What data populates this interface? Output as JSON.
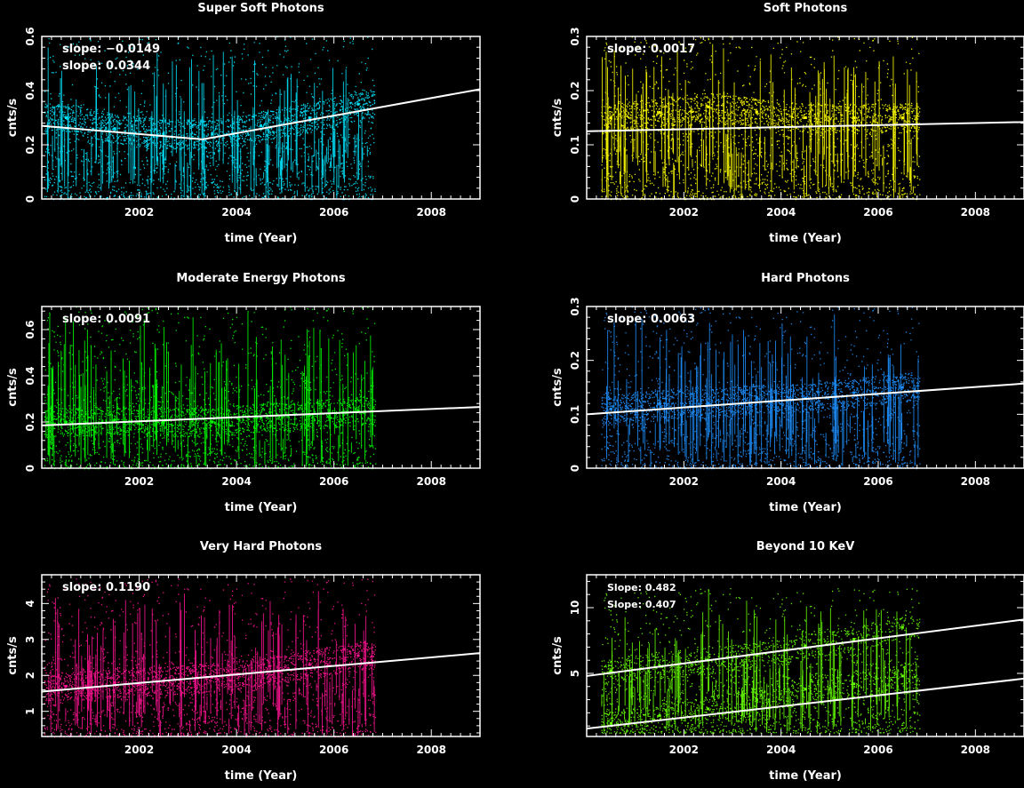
{
  "chart_data": [
    {
      "type": "scatter",
      "title": "Super Soft Photons",
      "xlabel": "time (Year)",
      "ylabel": "cnts/s",
      "xlim": [
        2000.0,
        2009.0
      ],
      "ylim": [
        0,
        0.6
      ],
      "xticks": [
        2002,
        2004,
        2006,
        2008
      ],
      "yticks": [
        0,
        0.2,
        0.4,
        0.6
      ],
      "point_color": "#00e5ff",
      "data_span": [
        2000.05,
        2006.85
      ],
      "spread": [
        0.0,
        0.6
      ],
      "slopes": [
        "slope: −0.0149",
        "slope: 0.0344"
      ],
      "fits": [
        {
          "x": [
            2000.0,
            2003.3
          ],
          "y": [
            0.27,
            0.22
          ]
        },
        {
          "x": [
            2003.3,
            2009.0
          ],
          "y": [
            0.22,
            0.405
          ]
        }
      ],
      "series": [
        {
          "name": "",
          "x": [
            2000.5,
            2001.5,
            2002.5,
            2003.5,
            2004.5,
            2005.5,
            2006.5
          ],
          "y": [
            0.3,
            0.26,
            0.24,
            0.24,
            0.27,
            0.3,
            0.35
          ]
        }
      ]
    },
    {
      "type": "scatter",
      "title": "Soft Photons",
      "xlabel": "time (Year)",
      "ylabel": "cnts/s",
      "xlim": [
        2000.0,
        2009.0
      ],
      "ylim": [
        0,
        0.3
      ],
      "xticks": [
        2002,
        2004,
        2006,
        2008
      ],
      "yticks": [
        0,
        0.1,
        0.2,
        0.3
      ],
      "point_color": "#ffff00",
      "data_span": [
        2000.3,
        2006.85
      ],
      "spread": [
        0.0,
        0.3
      ],
      "slopes": [
        "slope: 0.0017"
      ],
      "fits": [
        {
          "x": [
            2000.0,
            2009.0
          ],
          "y": [
            0.125,
            0.142
          ]
        }
      ],
      "series": [
        {
          "name": "",
          "x": [
            2000.5,
            2001.5,
            2002.5,
            2003.5,
            2004.5,
            2005.5,
            2006.5
          ],
          "y": [
            0.15,
            0.16,
            0.17,
            0.16,
            0.15,
            0.15,
            0.15
          ]
        }
      ]
    },
    {
      "type": "scatter",
      "title": "Moderate Energy Photons",
      "xlabel": "time (Year)",
      "ylabel": "cnts/s",
      "xlim": [
        2000.0,
        2009.0
      ],
      "ylim": [
        0,
        0.7
      ],
      "xticks": [
        2002,
        2004,
        2006,
        2008
      ],
      "yticks": [
        0,
        0.2,
        0.4,
        0.6
      ],
      "point_color": "#00ff00",
      "data_span": [
        2000.05,
        2006.85
      ],
      "spread": [
        0.0,
        0.7
      ],
      "slopes": [
        "slope: 0.0091"
      ],
      "fits": [
        {
          "x": [
            2000.0,
            2009.0
          ],
          "y": [
            0.185,
            0.265
          ]
        }
      ],
      "series": [
        {
          "name": "",
          "x": [
            2000.5,
            2001.5,
            2002.5,
            2003.5,
            2004.5,
            2005.5,
            2006.5
          ],
          "y": [
            0.2,
            0.21,
            0.2,
            0.2,
            0.22,
            0.23,
            0.25
          ]
        }
      ]
    },
    {
      "type": "scatter",
      "title": "Hard Photons",
      "xlabel": "time (Year)",
      "ylabel": "cnts/s",
      "xlim": [
        2000.0,
        2009.0
      ],
      "ylim": [
        0,
        0.3
      ],
      "xticks": [
        2002,
        2004,
        2006,
        2008
      ],
      "yticks": [
        0,
        0.1,
        0.2,
        0.3
      ],
      "point_color": "#1e90ff",
      "data_span": [
        2000.3,
        2006.85
      ],
      "spread": [
        0.0,
        0.3
      ],
      "slopes": [
        "slope: 0.0063"
      ],
      "fits": [
        {
          "x": [
            2000.0,
            2009.0
          ],
          "y": [
            0.1,
            0.157
          ]
        }
      ],
      "series": [
        {
          "name": "",
          "x": [
            2000.5,
            2001.5,
            2002.5,
            2003.5,
            2004.5,
            2005.5,
            2006.5
          ],
          "y": [
            0.11,
            0.12,
            0.12,
            0.13,
            0.13,
            0.14,
            0.15
          ]
        }
      ]
    },
    {
      "type": "scatter",
      "title": "Very Hard  Photons",
      "xlabel": "time (Year)",
      "ylabel": "cnts/s",
      "xlim": [
        2000.0,
        2009.0
      ],
      "ylim": [
        0.3,
        4.8
      ],
      "xticks": [
        2002,
        2004,
        2006,
        2008
      ],
      "yticks": [
        1,
        2,
        3,
        4
      ],
      "point_color": "#ff1493",
      "data_span": [
        2000.05,
        2006.85
      ],
      "spread": [
        0.3,
        4.7
      ],
      "slopes": [
        "slope: 0.1190"
      ],
      "fits": [
        {
          "x": [
            2000.0,
            2009.0
          ],
          "y": [
            1.55,
            2.62
          ]
        }
      ],
      "series": [
        {
          "name": "",
          "x": [
            2000.5,
            2001.5,
            2002.5,
            2003.5,
            2004.5,
            2005.5,
            2006.5
          ],
          "y": [
            1.7,
            1.8,
            1.85,
            1.95,
            2.1,
            2.3,
            2.55
          ]
        }
      ]
    },
    {
      "type": "scatter",
      "title": "Beyond 10 KeV",
      "xlabel": "time (Year)",
      "ylabel": "cnts/s",
      "xlim": [
        2000.0,
        2009.0
      ],
      "ylim": [
        0.2,
        12.5
      ],
      "xticks": [
        2002,
        2004,
        2006,
        2008
      ],
      "yticks": [
        5,
        10
      ],
      "point_color": "#66ff00",
      "data_span": [
        2000.3,
        2006.85
      ],
      "spread": [
        0.5,
        11.5
      ],
      "slopes": [
        "Slope: 0.482",
        "Slope: 0.407"
      ],
      "fits": [
        {
          "x": [
            2000.0,
            2009.0
          ],
          "y": [
            4.8,
            9.1
          ]
        },
        {
          "x": [
            2000.0,
            2009.0
          ],
          "y": [
            0.8,
            4.6
          ]
        }
      ],
      "series": [
        {
          "name": "",
          "x": [
            2000.5,
            2001.5,
            2002.5,
            2003.5,
            2004.5,
            2005.5,
            2006.5
          ],
          "y": [
            5.2,
            5.6,
            6.0,
            6.4,
            7.1,
            7.6,
            8.5
          ]
        },
        {
          "name": "",
          "x": [
            2000.5,
            2001.5,
            2002.5,
            2003.5,
            2004.5,
            2005.5,
            2006.5
          ],
          "y": [
            1.2,
            1.8,
            2.3,
            3.0,
            3.8,
            4.2,
            4.8
          ]
        }
      ]
    }
  ]
}
